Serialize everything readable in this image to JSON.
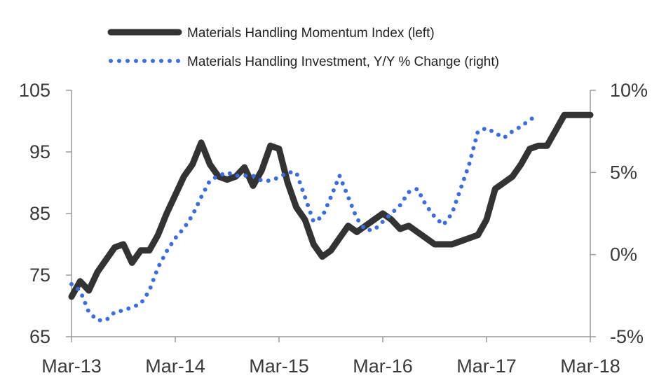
{
  "chart_data": {
    "type": "line",
    "title": "",
    "xlabel": "",
    "ylabel": "",
    "x_ticks": [
      "Mar-13",
      "Mar-14",
      "Mar-15",
      "Mar-16",
      "Mar-17",
      "Mar-18"
    ],
    "y_left": {
      "ylim": [
        65,
        105
      ],
      "ticks": [
        "65",
        "75",
        "85",
        "95",
        "105"
      ]
    },
    "y_right": {
      "ylim": [
        -5,
        10
      ],
      "ticks": [
        "-5%",
        "0%",
        "5%",
        "10%"
      ]
    },
    "grid": false,
    "legend_position": "top",
    "series": [
      {
        "name": "Materials Handling Momentum Index (left)",
        "axis": "left",
        "style": "solid",
        "color": "#333333",
        "x": [
          "Mar-13",
          "Apr-13",
          "May-13",
          "Jun-13",
          "Jul-13",
          "Aug-13",
          "Sep-13",
          "Oct-13",
          "Nov-13",
          "Dec-13",
          "Jan-14",
          "Feb-14",
          "Mar-14",
          "Apr-14",
          "May-14",
          "Jun-14",
          "Jul-14",
          "Aug-14",
          "Sep-14",
          "Oct-14",
          "Nov-14",
          "Dec-14",
          "Jan-15",
          "Feb-15",
          "Mar-15",
          "Apr-15",
          "May-15",
          "Jun-15",
          "Jul-15",
          "Aug-15",
          "Sep-15",
          "Oct-15",
          "Nov-15",
          "Dec-15",
          "Jan-16",
          "Feb-16",
          "Mar-16",
          "Apr-16",
          "May-16",
          "Jun-16",
          "Jul-16",
          "Aug-16",
          "Sep-16",
          "Oct-16",
          "Nov-16",
          "Dec-16",
          "Jan-17",
          "Feb-17",
          "Mar-17",
          "Apr-17",
          "May-17",
          "Jun-17",
          "Jul-17",
          "Aug-17",
          "Sep-17",
          "Oct-17",
          "Nov-17",
          "Dec-17",
          "Jan-18",
          "Feb-18",
          "Mar-18"
        ],
        "values": [
          71.5,
          74,
          72.5,
          75.5,
          77.5,
          79.5,
          80,
          77,
          79,
          79,
          81.5,
          85,
          88,
          91,
          93,
          96.5,
          93,
          91,
          90.5,
          91,
          92.5,
          89.5,
          92,
          96,
          95.5,
          90,
          86,
          84,
          80,
          78,
          79,
          81,
          83,
          82,
          83,
          84,
          85,
          84,
          82.5,
          83,
          82,
          81,
          80,
          80,
          80,
          80.5,
          81,
          81.5,
          84,
          89,
          90,
          91,
          93,
          95.5,
          96,
          96,
          98.5,
          101,
          101,
          101,
          101
        ]
      },
      {
        "name": "Materials Handling Investment, Y/Y % Change (right)",
        "axis": "right",
        "style": "dotted",
        "color": "#3b6de2",
        "x": [
          "Mar-13",
          "Apr-13",
          "May-13",
          "Jun-13",
          "Jul-13",
          "Aug-13",
          "Sep-13",
          "Oct-13",
          "Nov-13",
          "Dec-13",
          "Jan-14",
          "Feb-14",
          "Mar-14",
          "Apr-14",
          "May-14",
          "Jun-14",
          "Jul-14",
          "Aug-14",
          "Sep-14",
          "Oct-14",
          "Nov-14",
          "Dec-14",
          "Jan-15",
          "Feb-15",
          "Mar-15",
          "Apr-15",
          "May-15",
          "Jun-15",
          "Jul-15",
          "Aug-15",
          "Sep-15",
          "Oct-15",
          "Nov-15",
          "Dec-15",
          "Jan-16",
          "Feb-16",
          "Mar-16",
          "Apr-16",
          "May-16",
          "Jun-16",
          "Jul-16",
          "Aug-16",
          "Sep-16",
          "Oct-16",
          "Nov-16",
          "Dec-16",
          "Jan-17",
          "Feb-17",
          "Mar-17",
          "Apr-17",
          "May-17",
          "Jun-17",
          "Jul-17",
          "Aug-17",
          "Sep-17"
        ],
        "values": [
          -1.8,
          -2.2,
          -3.5,
          -4,
          -4,
          -3.5,
          -3.4,
          -3.2,
          -3,
          -2.2,
          -0.8,
          0.2,
          1,
          1.6,
          2.4,
          3.5,
          4.5,
          4.8,
          5,
          4.8,
          4.8,
          4.8,
          4.5,
          4.5,
          4.7,
          5,
          5,
          3.5,
          2,
          2.3,
          3.5,
          4.8,
          3.5,
          2.2,
          1.5,
          1.5,
          2,
          2.5,
          3,
          3.8,
          4,
          3,
          2.3,
          1.8,
          2.5,
          4,
          5.5,
          7.5,
          7.7,
          7.4,
          7.1,
          7.5,
          7.8,
          8.2,
          8.5
        ]
      }
    ]
  }
}
